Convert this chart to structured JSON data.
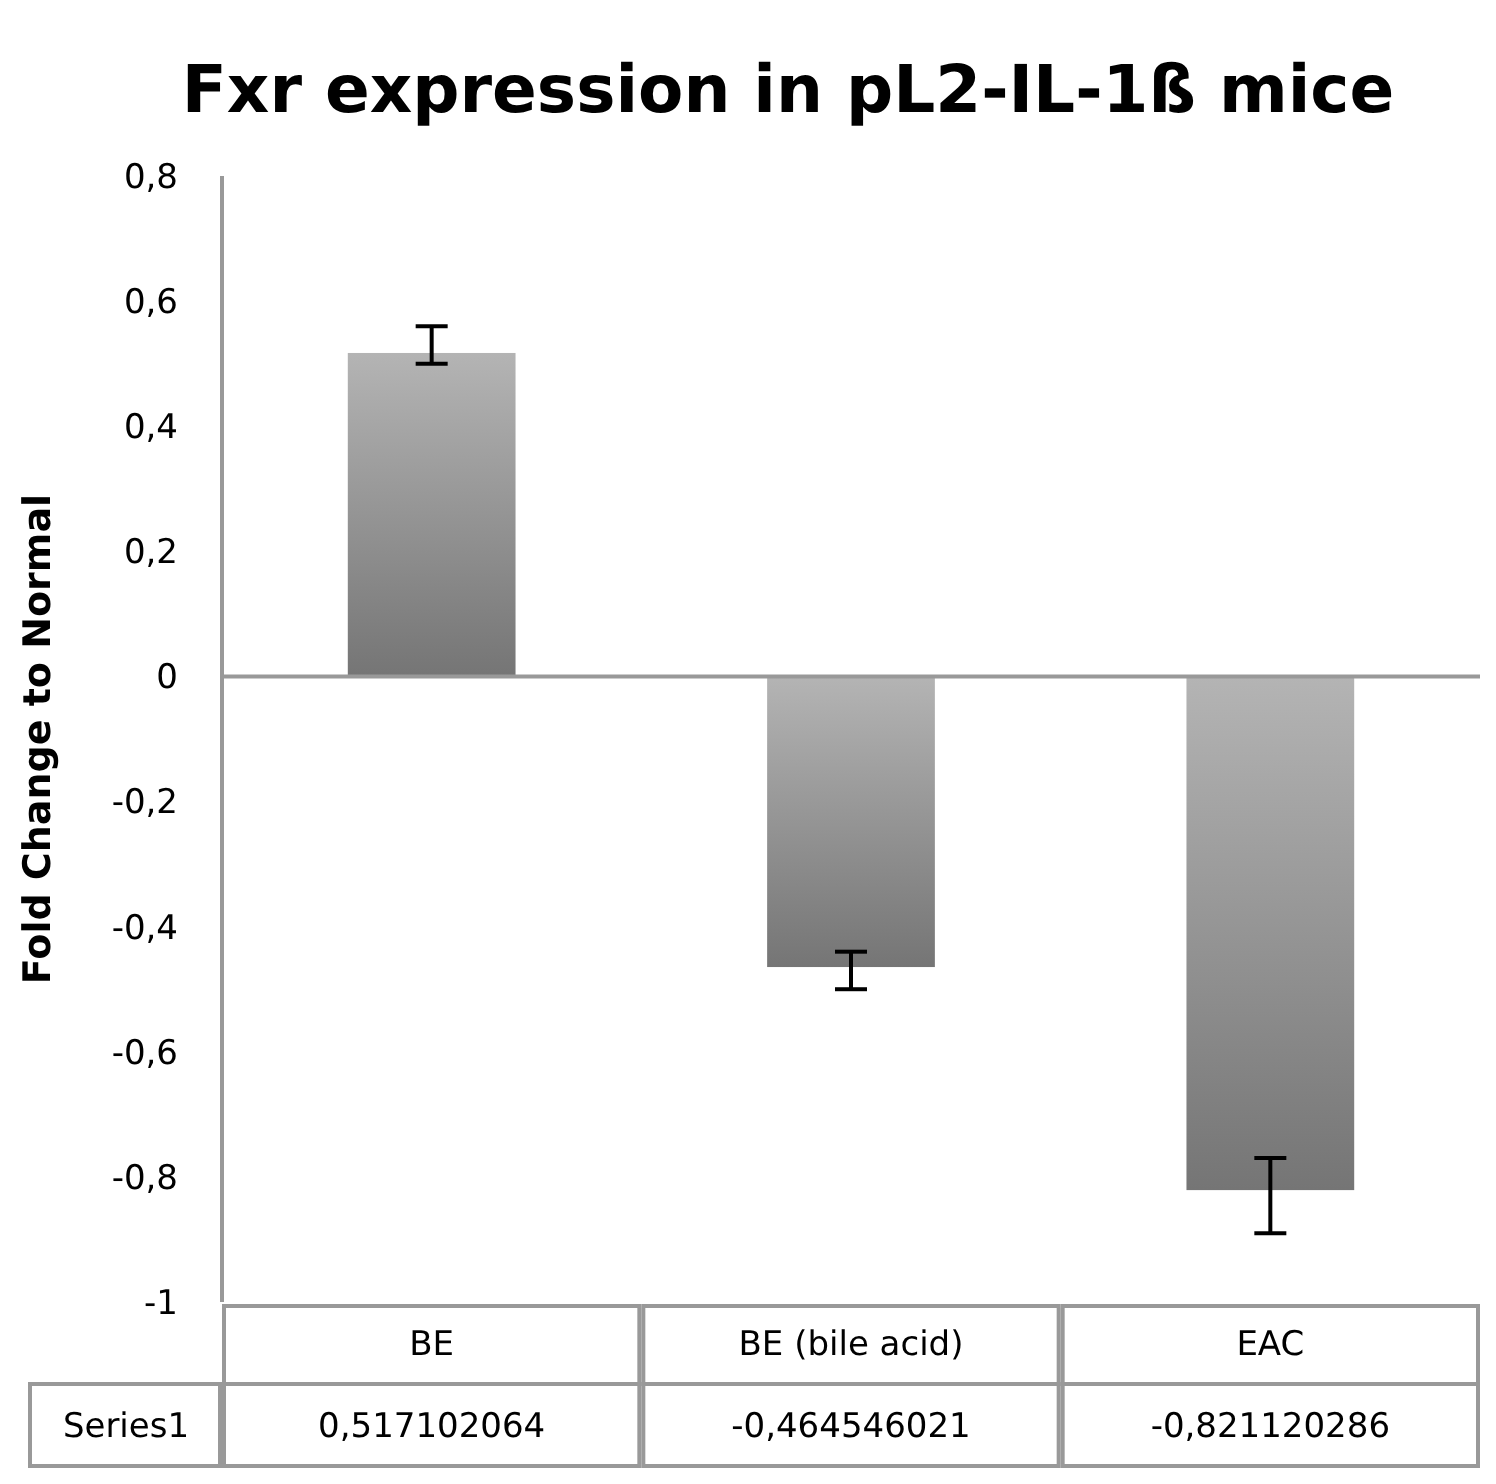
{
  "chart_data": {
    "type": "bar",
    "title": "Fxr expression in pL2-IL-1ß mice",
    "ylabel": "Fold Change to Normal",
    "categories": [
      "BE",
      "BE (bile acid)",
      "EAC"
    ],
    "series": [
      {
        "name": "Series1",
        "color": "#8c8c8c",
        "values": [
          0.517102064,
          -0.464546021,
          -0.821120286
        ],
        "errors": [
          [
            0.5,
            0.56
          ],
          [
            -0.5,
            -0.44
          ],
          [
            -0.89,
            -0.77
          ]
        ],
        "value_labels": [
          "0,517102064",
          "-0,464546021",
          "-0,821120286"
        ]
      }
    ],
    "ylim": [
      -1,
      0.8
    ],
    "yticks": [
      {
        "value": -1,
        "label": "-1"
      },
      {
        "value": -0.8,
        "label": "-0,8"
      },
      {
        "value": -0.6,
        "label": "-0,6"
      },
      {
        "value": -0.4,
        "label": "-0,4"
      },
      {
        "value": -0.2,
        "label": "-0,2"
      },
      {
        "value": 0,
        "label": "0"
      },
      {
        "value": 0.2,
        "label": "0,2"
      },
      {
        "value": 0.4,
        "label": "0,4"
      },
      {
        "value": 0.6,
        "label": "0,6"
      },
      {
        "value": 0.8,
        "label": "0,8"
      }
    ],
    "legend": false
  }
}
